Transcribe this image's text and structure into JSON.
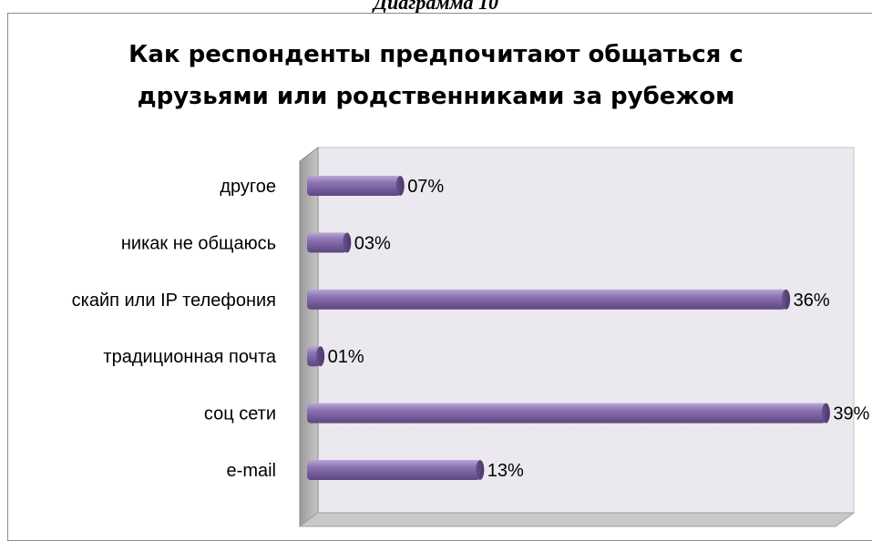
{
  "caption": "Диаграмма 10",
  "chart_data": {
    "type": "bar",
    "orientation": "horizontal",
    "title": "Как респонденты предпочитают общаться с друзьями или родственниками за рубежом",
    "title_lines": [
      "Как респонденты предпочитают общаться с",
      "друзьями или родственниками за рубежом"
    ],
    "categories": [
      "другое",
      "никак не общаюсь",
      "скайп или IP телефония",
      "традиционная почта",
      "соц сети",
      "e-mail"
    ],
    "values": [
      7,
      3,
      36,
      1,
      39,
      13
    ],
    "value_labels": [
      "07%",
      "03%",
      "36%",
      "01%",
      "39%",
      "13%"
    ],
    "xlim": [
      0,
      40
    ],
    "grid": false,
    "legend": "none",
    "bar_color": "#8064a2",
    "wall_color": "#ebe8f0",
    "floor_color": "#c8c8c8"
  }
}
